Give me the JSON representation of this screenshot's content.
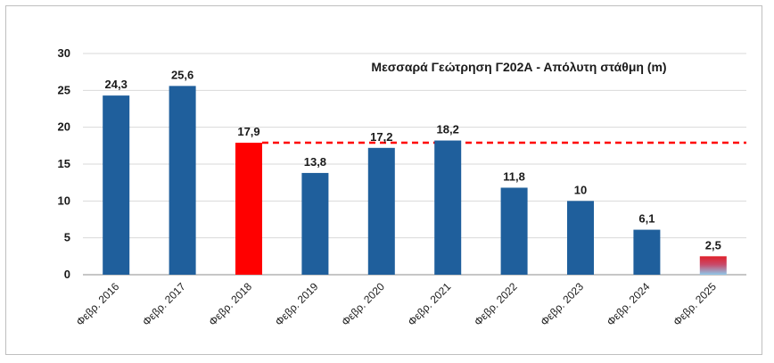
{
  "chart_data": {
    "type": "bar",
    "title": "Μεσσαρά Γεώτρηση  Γ202Α - Απόλυτη στάθμη (m)",
    "xlabel": "",
    "ylabel": "",
    "ylim": [
      0,
      30
    ],
    "yticks": [
      0,
      5,
      10,
      15,
      20,
      25,
      30
    ],
    "grid": true,
    "categories": [
      "Φεβρ. 2016",
      "Φεβρ. 2017",
      "Φεβρ. 2018",
      "Φεβρ. 2019",
      "Φεβρ. 2020",
      "Φεβρ. 2021",
      "Φεβρ. 2022",
      "Φεβρ. 2023",
      "Φεβρ. 2024",
      "Φεβρ. 2025"
    ],
    "values": [
      24.3,
      25.6,
      17.9,
      13.8,
      17.2,
      18.2,
      11.8,
      10,
      6.1,
      2.5
    ],
    "data_labels": [
      "24,3",
      "25,6",
      "17,9",
      "13,8",
      "17,2",
      "18,2",
      "11,8",
      "10",
      "6,1",
      "2,5"
    ],
    "bar_colors": [
      "#1f5f9c",
      "#1f5f9c",
      "#ff0000",
      "#1f5f9c",
      "#1f5f9c",
      "#1f5f9c",
      "#1f5f9c",
      "#1f5f9c",
      "#1f5f9c",
      "gradient"
    ],
    "gradient_bar_colors": {
      "top": "#e0202a",
      "bottom": "#8fc8ea"
    },
    "reference_line": {
      "value": 17.9,
      "color": "#ff0000",
      "style": "dashed",
      "from_category": "Φεβρ. 2018"
    }
  }
}
